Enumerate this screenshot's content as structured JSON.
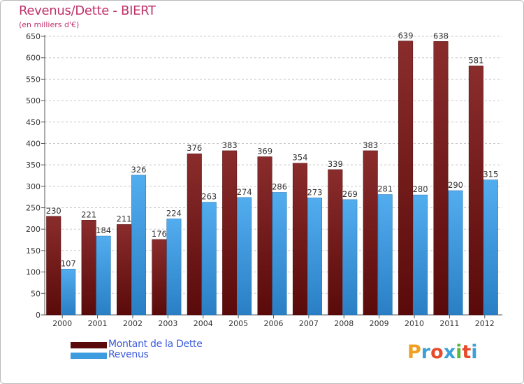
{
  "header": {
    "title": "Revenus/Dette - BIERT",
    "subtitle": "(en milliers d'€)"
  },
  "legend": {
    "items": [
      {
        "label": "Montant de la Dette",
        "color": "#7a1a1a"
      },
      {
        "label": "Revenus",
        "color": "#3d9be0"
      }
    ]
  },
  "logo": {
    "letters": [
      "P",
      "r",
      "o",
      "x",
      "i",
      "t",
      "i"
    ],
    "colors": [
      "#f0a020",
      "#3aa0d8",
      "#e84a2a",
      "#3aa0d8",
      "#58b838",
      "#e84a2a",
      "#3aa0d8"
    ]
  },
  "chart_data": {
    "type": "bar",
    "title": "Revenus/Dette - BIERT",
    "ylabel": "(en milliers d'€)",
    "xlabel": "",
    "ylim": [
      0,
      650
    ],
    "yticks": [
      0,
      50,
      100,
      150,
      200,
      250,
      300,
      350,
      400,
      450,
      500,
      550,
      600,
      650
    ],
    "grid": "horizontal dashed",
    "categories": [
      "2000",
      "2001",
      "2002",
      "2003",
      "2004",
      "2005",
      "2006",
      "2007",
      "2008",
      "2009",
      "2010",
      "2011",
      "2012"
    ],
    "series": [
      {
        "name": "Montant de la Dette",
        "color": "#7a1a1a",
        "values": [
          230,
          221,
          211,
          176,
          376,
          383,
          369,
          354,
          339,
          383,
          639,
          638,
          581
        ]
      },
      {
        "name": "Revenus",
        "color": "#3d9be0",
        "values": [
          107,
          184,
          326,
          224,
          263,
          274,
          286,
          273,
          269,
          281,
          280,
          290,
          315
        ]
      }
    ]
  }
}
